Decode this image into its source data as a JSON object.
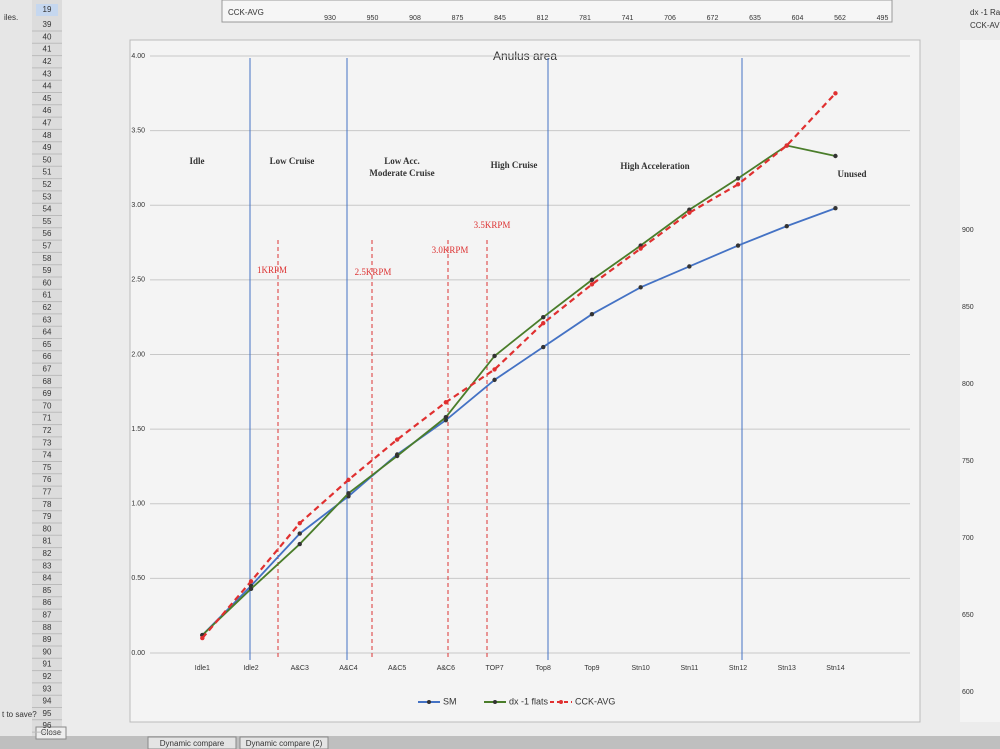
{
  "spreadsheet": {
    "selected_row": "19",
    "row_numbers": [
      39,
      40,
      41,
      42,
      43,
      44,
      45,
      46,
      47,
      48,
      49,
      50,
      51,
      52,
      53,
      54,
      55,
      56,
      57,
      58,
      59,
      60,
      61,
      62,
      63,
      64,
      65,
      66,
      67,
      68,
      69,
      70,
      71,
      72,
      73,
      74,
      75,
      76,
      77,
      78,
      79,
      80,
      81,
      82,
      83,
      84,
      85,
      86,
      87,
      88,
      89,
      90,
      91,
      92,
      93,
      94,
      95,
      96
    ],
    "top_row": {
      "label": "CCK-AVG",
      "values": [
        930,
        950,
        908,
        875,
        845,
        812,
        781,
        741,
        706,
        672,
        635,
        604,
        562,
        495
      ]
    },
    "left_fragments": [
      "iles.",
      "t to save?"
    ],
    "close_button": "Close",
    "tabs": [
      "Dynamic compare",
      "Dynamic compare (2)"
    ],
    "right_fragments": [
      "dx -1 Ra",
      "CCK-AV"
    ],
    "right_axis_ticks": [
      900,
      850,
      800,
      750,
      700,
      650,
      600
    ]
  },
  "chart_data": {
    "type": "line",
    "title": "Anulus area",
    "categories": [
      "Idle1",
      "Idle2",
      "A&C3",
      "A&C4",
      "A&C5",
      "A&C6",
      "TOP7",
      "Top8",
      "Top9",
      "Stn10",
      "Stn11",
      "Stn12",
      "Stn13",
      "Stn14"
    ],
    "series": [
      {
        "name": "SM",
        "color": "#4472c4",
        "dash": false,
        "values": [
          0.12,
          0.45,
          0.8,
          1.05,
          1.33,
          1.56,
          1.83,
          2.05,
          2.27,
          2.45,
          2.59,
          2.73,
          2.86,
          2.98
        ]
      },
      {
        "name": "dx -1 flats",
        "color": "#4a7d2a",
        "dash": false,
        "values": [
          0.12,
          0.43,
          0.73,
          1.07,
          1.32,
          1.58,
          1.99,
          2.25,
          2.5,
          2.73,
          2.97,
          3.18,
          3.4,
          3.33
        ]
      },
      {
        "name": "CCK-AVG",
        "color": "#e03030",
        "dash": true,
        "values": [
          0.1,
          0.48,
          0.87,
          1.16,
          1.43,
          1.68,
          1.9,
          2.21,
          2.47,
          2.71,
          2.95,
          3.14,
          3.4,
          3.75
        ]
      }
    ],
    "ylim": [
      0,
      4
    ],
    "yticks": [
      {
        "value": 0,
        "label": "0.00"
      },
      {
        "value": 0.5,
        "label": "0.50"
      },
      {
        "value": 1,
        "label": "1.00"
      },
      {
        "value": 1.5,
        "label": "1.50"
      },
      {
        "value": 2,
        "label": "2.00"
      },
      {
        "value": 2.5,
        "label": "2.50"
      },
      {
        "value": 3,
        "label": "3.00"
      },
      {
        "value": 3.5,
        "label": "3.50"
      },
      {
        "value": 4,
        "label": "4.00"
      }
    ],
    "grid": true,
    "legend": "bottom",
    "regions": [
      "Idle",
      "Low Cruise",
      "Low Acc.",
      "Moderate Cruise",
      "High Cruise",
      "High Acceleration",
      "Unused"
    ],
    "rpm_labels": [
      "1KRPM",
      "2.5KRPM",
      "3.0KRPM",
      "3.5KRPM"
    ]
  }
}
